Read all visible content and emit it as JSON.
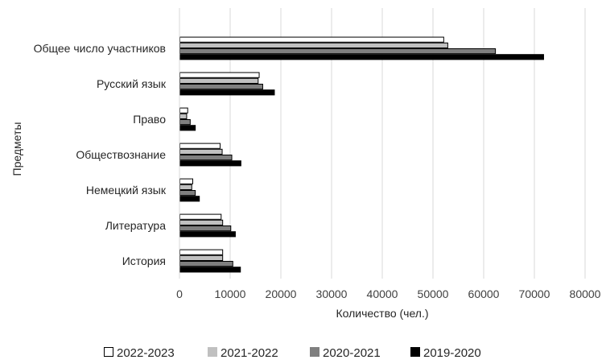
{
  "chart_data": {
    "type": "bar",
    "orientation": "horizontal",
    "categories": [
      "Общее число участников",
      "Русский язык",
      "Право",
      "Обществознание",
      "Немецкий язык",
      "Литература",
      "История"
    ],
    "series": [
      {
        "name": "2022-2023",
        "color": "#ffffff",
        "values": [
          52200,
          15800,
          1700,
          8100,
          2700,
          8300,
          8600
        ]
      },
      {
        "name": "2021-2022",
        "color": "#c0c0c0",
        "values": [
          53000,
          15600,
          1500,
          8500,
          2500,
          8600,
          8600
        ]
      },
      {
        "name": "2020-2021",
        "color": "#7f7f7f",
        "values": [
          62400,
          16500,
          2200,
          10400,
          3200,
          10200,
          10600
        ]
      },
      {
        "name": "2019-2020",
        "color": "#000000",
        "values": [
          71900,
          18800,
          3200,
          12200,
          4000,
          11100,
          12100
        ]
      }
    ],
    "xlabel": "Количество (чел.)",
    "ylabel": "Предметы",
    "xlim": [
      0,
      80000
    ],
    "x_ticks": [
      "0",
      "10000",
      "20000",
      "30000",
      "40000",
      "50000",
      "60000",
      "70000",
      "80000"
    ],
    "grid": "vertical",
    "legend_position": "bottom"
  }
}
